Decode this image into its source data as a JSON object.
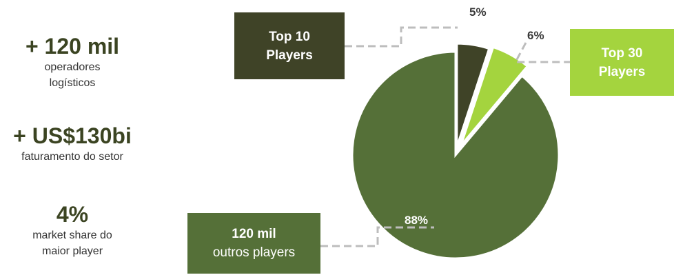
{
  "stats": [
    {
      "value": "+ 120 mil",
      "desc_line1": "operadores",
      "desc_line2": "logísticos"
    },
    {
      "value": "+ US$130bi",
      "desc_line1": "faturamento do setor",
      "desc_line2": ""
    },
    {
      "value": "4%",
      "desc_line1": "market share do",
      "desc_line2": "maior player"
    }
  ],
  "colors": {
    "top10": "#3f4327",
    "top30": "#a4d43e",
    "outros": "#557038",
    "stat_text": "#3b4422",
    "leader": "#bdbdbd"
  },
  "chart_data": {
    "type": "pie",
    "slices": [
      {
        "label_line1": "Top 10",
        "label_line2": "Players",
        "value": 5,
        "pct_label": "5%"
      },
      {
        "label_line1": "Top 30",
        "label_line2": "Players",
        "value": 6,
        "pct_label": "6%"
      },
      {
        "label_line1": "120 mil",
        "label_line2": "outros players",
        "value": 88,
        "pct_label": "88%"
      }
    ]
  }
}
